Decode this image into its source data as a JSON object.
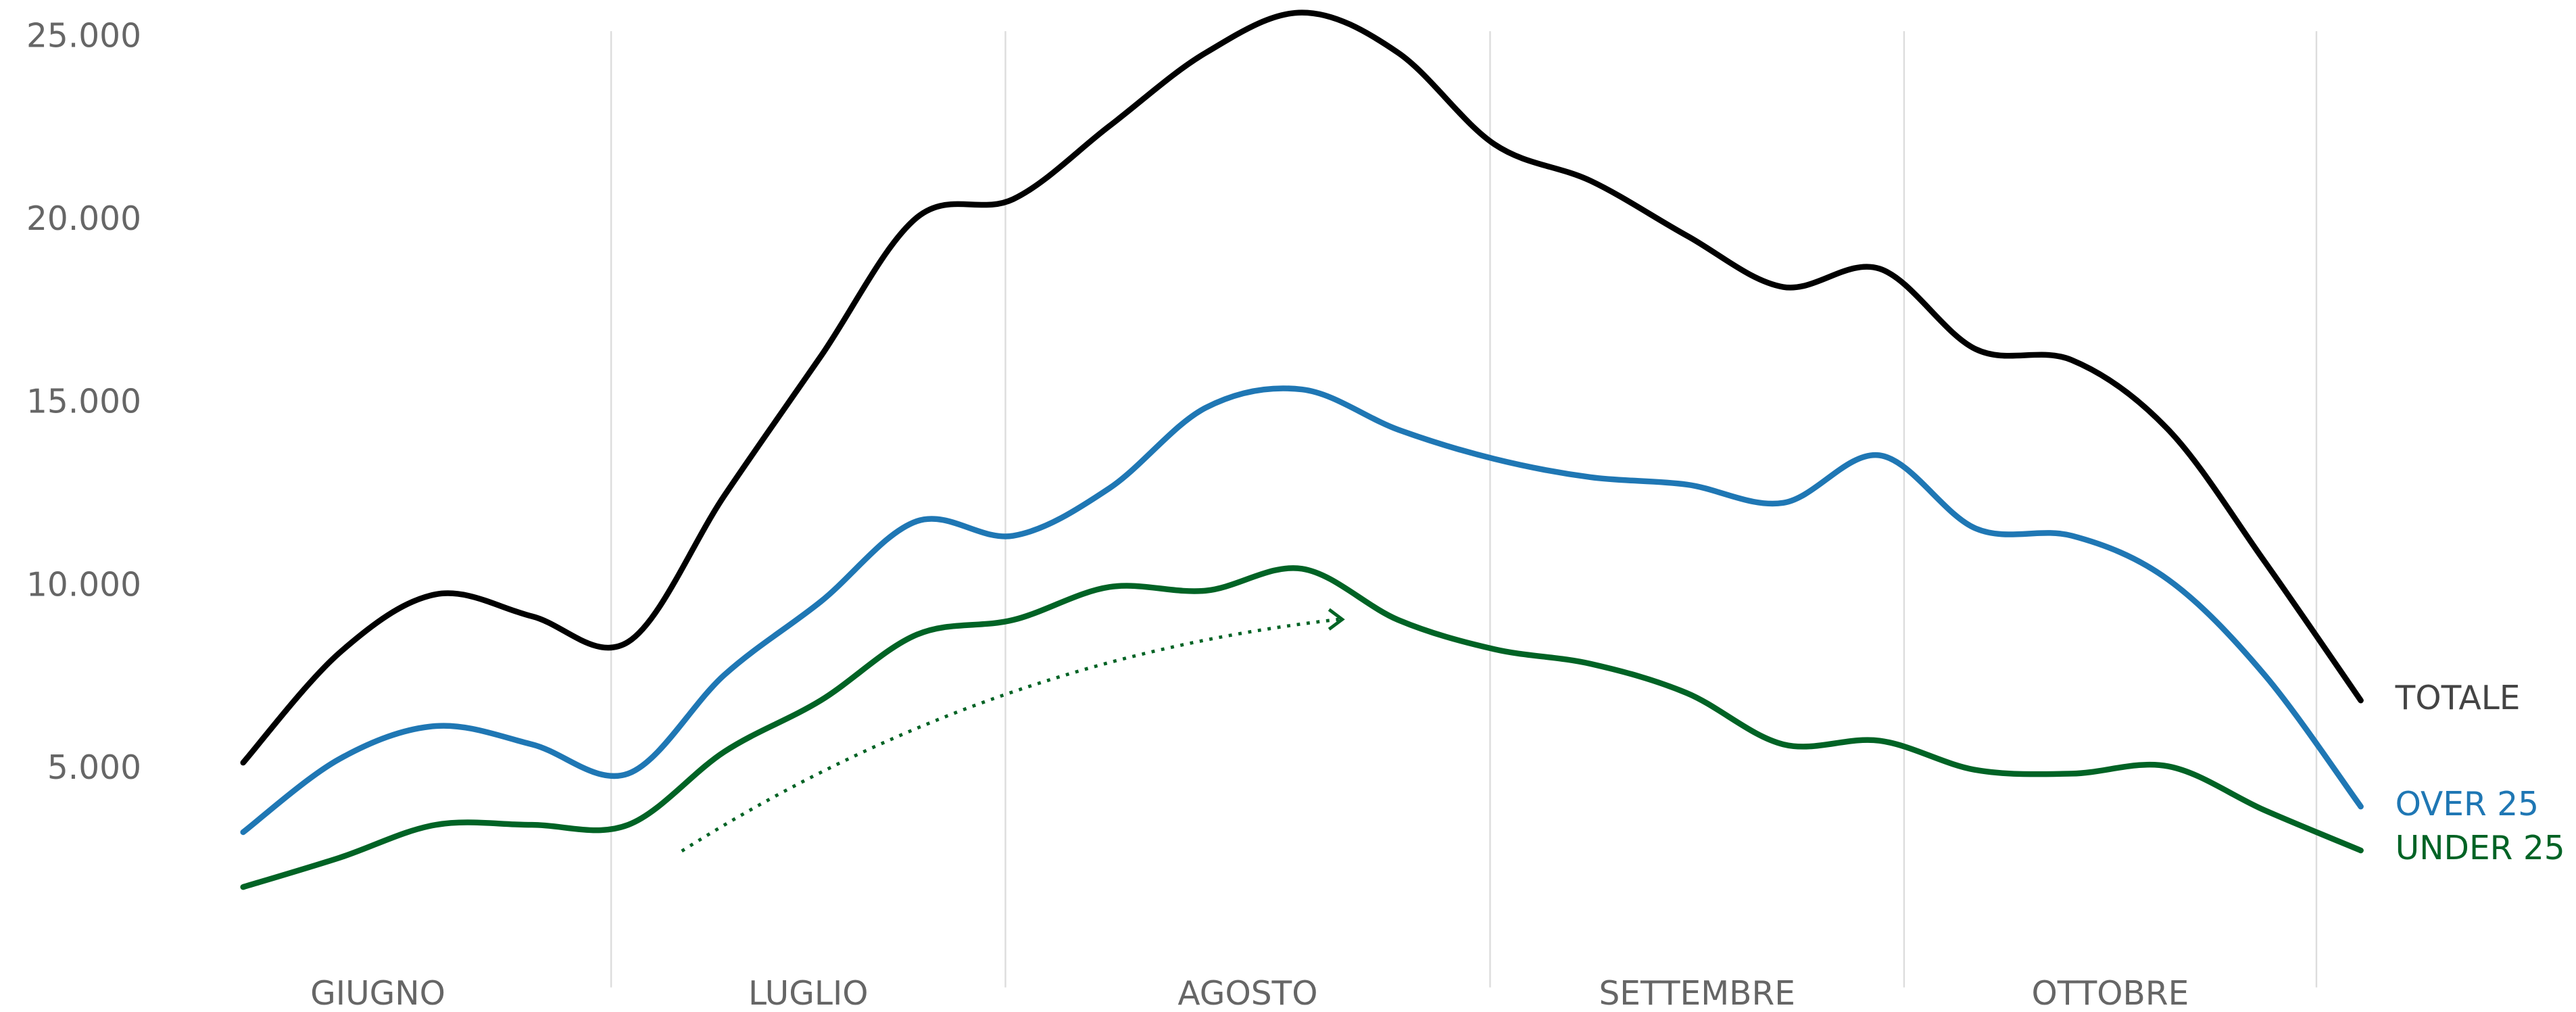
{
  "chart_data": {
    "type": "line",
    "categories": [
      null,
      null,
      null,
      null,
      null,
      null,
      null,
      null,
      null,
      null,
      null,
      null,
      null,
      null,
      null,
      null,
      null,
      null,
      null,
      null,
      null,
      null,
      null
    ],
    "months": [
      "GIUGNO",
      "LUGLIO",
      "AGOSTO",
      "SETTEMBRE",
      "OTTOBRE"
    ],
    "series": [
      {
        "name": "TOTALE",
        "color": "#000000",
        "values": [
          5200,
          8200,
          9800,
          9200,
          8500,
          12500,
          16300,
          20100,
          20600,
          22600,
          24600,
          25700,
          24600,
          22100,
          21100,
          19600,
          18200,
          18700,
          16500,
          16200,
          14300,
          10700,
          6900
        ]
      },
      {
        "name": "OVER 25",
        "color": "#1f77b4",
        "values": [
          3300,
          5300,
          6200,
          5700,
          4900,
          7600,
          9600,
          11800,
          11400,
          12700,
          14900,
          15400,
          14300,
          13500,
          13000,
          12800,
          12300,
          13600,
          11600,
          11400,
          10200,
          7600,
          4000
        ]
      },
      {
        "name": "UNDER 25",
        "color": "#006325",
        "values": [
          1800,
          2600,
          3500,
          3500,
          3500,
          5500,
          6900,
          8700,
          9100,
          10000,
          9900,
          10500,
          9100,
          8300,
          7900,
          7100,
          5700,
          5800,
          5000,
          4900,
          5100,
          3900,
          2800
        ]
      }
    ],
    "ylim": [
      0,
      26000
    ],
    "yticks": [
      {
        "value": 5000,
        "label": "5.000"
      },
      {
        "value": 10000,
        "label": "10.000"
      },
      {
        "value": 15000,
        "label": "15.000"
      },
      {
        "value": 20000,
        "label": "20.000"
      },
      {
        "value": 25000,
        "label": "25.000"
      }
    ],
    "grid": false
  }
}
